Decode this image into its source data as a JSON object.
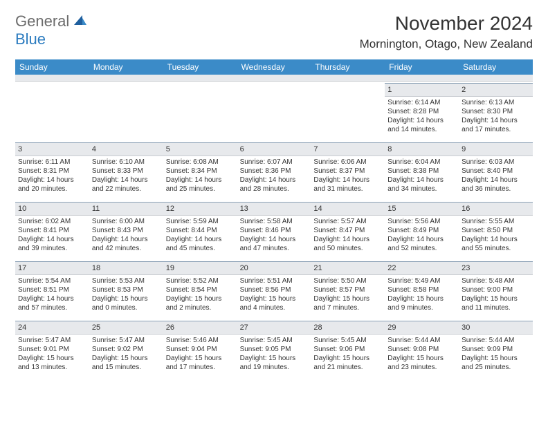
{
  "header": {
    "logo_general": "General",
    "logo_blue": "Blue",
    "month_title": "November 2024",
    "location": "Mornington, Otago, New Zealand"
  },
  "style": {
    "header_bg": "#3b8bc8",
    "daynum_bg": "#e7e9ec",
    "text_color": "#333333",
    "logo_gray": "#6b6b6b",
    "logo_blue": "#2b7bbf",
    "border_top": "#8aa0b5",
    "font_size_body": 10,
    "font_size_daynum": 11,
    "font_size_header": 12
  },
  "day_names": [
    "Sunday",
    "Monday",
    "Tuesday",
    "Wednesday",
    "Thursday",
    "Friday",
    "Saturday"
  ],
  "weeks": [
    [
      {
        "day": "",
        "sunrise": "",
        "sunset": "",
        "daylight": "",
        "empty": true
      },
      {
        "day": "",
        "sunrise": "",
        "sunset": "",
        "daylight": "",
        "empty": true
      },
      {
        "day": "",
        "sunrise": "",
        "sunset": "",
        "daylight": "",
        "empty": true
      },
      {
        "day": "",
        "sunrise": "",
        "sunset": "",
        "daylight": "",
        "empty": true
      },
      {
        "day": "",
        "sunrise": "",
        "sunset": "",
        "daylight": "",
        "empty": true
      },
      {
        "day": "1",
        "sunrise": "Sunrise: 6:14 AM",
        "sunset": "Sunset: 8:28 PM",
        "daylight": "Daylight: 14 hours and 14 minutes."
      },
      {
        "day": "2",
        "sunrise": "Sunrise: 6:13 AM",
        "sunset": "Sunset: 8:30 PM",
        "daylight": "Daylight: 14 hours and 17 minutes."
      }
    ],
    [
      {
        "day": "3",
        "sunrise": "Sunrise: 6:11 AM",
        "sunset": "Sunset: 8:31 PM",
        "daylight": "Daylight: 14 hours and 20 minutes."
      },
      {
        "day": "4",
        "sunrise": "Sunrise: 6:10 AM",
        "sunset": "Sunset: 8:33 PM",
        "daylight": "Daylight: 14 hours and 22 minutes."
      },
      {
        "day": "5",
        "sunrise": "Sunrise: 6:08 AM",
        "sunset": "Sunset: 8:34 PM",
        "daylight": "Daylight: 14 hours and 25 minutes."
      },
      {
        "day": "6",
        "sunrise": "Sunrise: 6:07 AM",
        "sunset": "Sunset: 8:36 PM",
        "daylight": "Daylight: 14 hours and 28 minutes."
      },
      {
        "day": "7",
        "sunrise": "Sunrise: 6:06 AM",
        "sunset": "Sunset: 8:37 PM",
        "daylight": "Daylight: 14 hours and 31 minutes."
      },
      {
        "day": "8",
        "sunrise": "Sunrise: 6:04 AM",
        "sunset": "Sunset: 8:38 PM",
        "daylight": "Daylight: 14 hours and 34 minutes."
      },
      {
        "day": "9",
        "sunrise": "Sunrise: 6:03 AM",
        "sunset": "Sunset: 8:40 PM",
        "daylight": "Daylight: 14 hours and 36 minutes."
      }
    ],
    [
      {
        "day": "10",
        "sunrise": "Sunrise: 6:02 AM",
        "sunset": "Sunset: 8:41 PM",
        "daylight": "Daylight: 14 hours and 39 minutes."
      },
      {
        "day": "11",
        "sunrise": "Sunrise: 6:00 AM",
        "sunset": "Sunset: 8:43 PM",
        "daylight": "Daylight: 14 hours and 42 minutes."
      },
      {
        "day": "12",
        "sunrise": "Sunrise: 5:59 AM",
        "sunset": "Sunset: 8:44 PM",
        "daylight": "Daylight: 14 hours and 45 minutes."
      },
      {
        "day": "13",
        "sunrise": "Sunrise: 5:58 AM",
        "sunset": "Sunset: 8:46 PM",
        "daylight": "Daylight: 14 hours and 47 minutes."
      },
      {
        "day": "14",
        "sunrise": "Sunrise: 5:57 AM",
        "sunset": "Sunset: 8:47 PM",
        "daylight": "Daylight: 14 hours and 50 minutes."
      },
      {
        "day": "15",
        "sunrise": "Sunrise: 5:56 AM",
        "sunset": "Sunset: 8:49 PM",
        "daylight": "Daylight: 14 hours and 52 minutes."
      },
      {
        "day": "16",
        "sunrise": "Sunrise: 5:55 AM",
        "sunset": "Sunset: 8:50 PM",
        "daylight": "Daylight: 14 hours and 55 minutes."
      }
    ],
    [
      {
        "day": "17",
        "sunrise": "Sunrise: 5:54 AM",
        "sunset": "Sunset: 8:51 PM",
        "daylight": "Daylight: 14 hours and 57 minutes."
      },
      {
        "day": "18",
        "sunrise": "Sunrise: 5:53 AM",
        "sunset": "Sunset: 8:53 PM",
        "daylight": "Daylight: 15 hours and 0 minutes."
      },
      {
        "day": "19",
        "sunrise": "Sunrise: 5:52 AM",
        "sunset": "Sunset: 8:54 PM",
        "daylight": "Daylight: 15 hours and 2 minutes."
      },
      {
        "day": "20",
        "sunrise": "Sunrise: 5:51 AM",
        "sunset": "Sunset: 8:56 PM",
        "daylight": "Daylight: 15 hours and 4 minutes."
      },
      {
        "day": "21",
        "sunrise": "Sunrise: 5:50 AM",
        "sunset": "Sunset: 8:57 PM",
        "daylight": "Daylight: 15 hours and 7 minutes."
      },
      {
        "day": "22",
        "sunrise": "Sunrise: 5:49 AM",
        "sunset": "Sunset: 8:58 PM",
        "daylight": "Daylight: 15 hours and 9 minutes."
      },
      {
        "day": "23",
        "sunrise": "Sunrise: 5:48 AM",
        "sunset": "Sunset: 9:00 PM",
        "daylight": "Daylight: 15 hours and 11 minutes."
      }
    ],
    [
      {
        "day": "24",
        "sunrise": "Sunrise: 5:47 AM",
        "sunset": "Sunset: 9:01 PM",
        "daylight": "Daylight: 15 hours and 13 minutes."
      },
      {
        "day": "25",
        "sunrise": "Sunrise: 5:47 AM",
        "sunset": "Sunset: 9:02 PM",
        "daylight": "Daylight: 15 hours and 15 minutes."
      },
      {
        "day": "26",
        "sunrise": "Sunrise: 5:46 AM",
        "sunset": "Sunset: 9:04 PM",
        "daylight": "Daylight: 15 hours and 17 minutes."
      },
      {
        "day": "27",
        "sunrise": "Sunrise: 5:45 AM",
        "sunset": "Sunset: 9:05 PM",
        "daylight": "Daylight: 15 hours and 19 minutes."
      },
      {
        "day": "28",
        "sunrise": "Sunrise: 5:45 AM",
        "sunset": "Sunset: 9:06 PM",
        "daylight": "Daylight: 15 hours and 21 minutes."
      },
      {
        "day": "29",
        "sunrise": "Sunrise: 5:44 AM",
        "sunset": "Sunset: 9:08 PM",
        "daylight": "Daylight: 15 hours and 23 minutes."
      },
      {
        "day": "30",
        "sunrise": "Sunrise: 5:44 AM",
        "sunset": "Sunset: 9:09 PM",
        "daylight": "Daylight: 15 hours and 25 minutes."
      }
    ]
  ]
}
